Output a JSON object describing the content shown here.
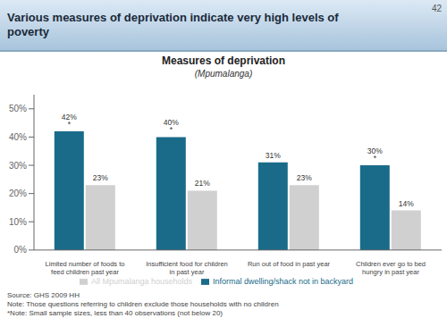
{
  "chart_data": {
    "type": "bar",
    "title": "Measures of deprivation",
    "subtitle": "(Mpumalanga)",
    "annotations": [
      "Various measures of deprivation indicate very high levels of\npoverty",
      "42",
      "Source: GHS 2009 HH\nNote: Those questions referring to children exclude those households with no children\n*Note: Small sample sizes, less than 40 observations (not below 20)"
    ],
    "categories": [
      "Limited number of foods to\nfeed children past year",
      "Insufficient food for children\nin past year",
      "Run out of food in past year",
      "Children ever go to bed\nhungry in past year"
    ],
    "series": [
      {
        "name": "Informal dwelling/shack not in backyard",
        "color": "#1a6b8a",
        "values": [
          0.42,
          0.4,
          0.31,
          0.3
        ],
        "value_labels": [
          "42% *",
          "40% *",
          "31%",
          "30% *"
        ]
      },
      {
        "name": "All Mpumalanga households",
        "color": "#d0d0d0",
        "values": [
          0.23,
          0.21,
          0.23,
          0.14
        ],
        "value_labels": [
          "23%",
          "21%",
          "23%",
          "14%"
        ]
      }
    ],
    "ylim": [
      0,
      0.55
    ],
    "yticks": [
      {
        "value": 0.0,
        "label": "0%"
      },
      {
        "value": 0.1,
        "label": "10%"
      },
      {
        "value": 0.2,
        "label": "20%"
      },
      {
        "value": 0.3,
        "label": "30%"
      },
      {
        "value": 0.4,
        "label": "40%"
      },
      {
        "value": 0.5,
        "label": "50%"
      }
    ],
    "grid": false,
    "legend": "bottom",
    "data_labels": true
  }
}
